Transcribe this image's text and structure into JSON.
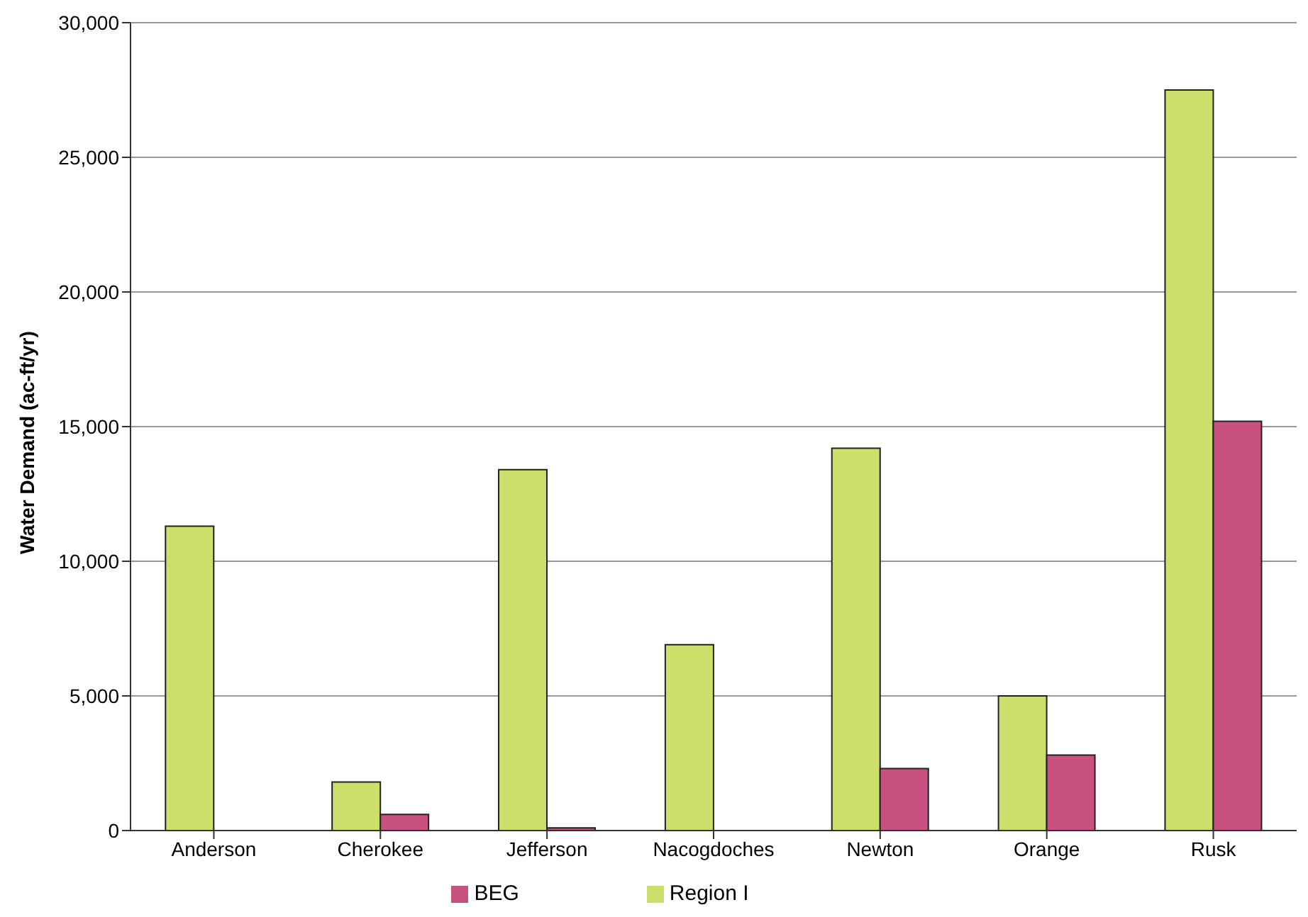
{
  "chart_data": {
    "type": "bar",
    "ylabel": "Water Demand (ac-ft/yr)",
    "categories": [
      "Anderson",
      "Cherokee",
      "Jefferson",
      "Nacogdoches",
      "Newton",
      "Orange",
      "Rusk"
    ],
    "series": [
      {
        "name": "Region I",
        "color": "#cddf6a",
        "values": [
          11300,
          1800,
          13400,
          6900,
          14200,
          5000,
          27500
        ]
      },
      {
        "name": "BEG",
        "color": "#c8517f",
        "values": [
          0,
          600,
          100,
          0,
          2300,
          2800,
          15200
        ]
      }
    ],
    "ylim": [
      0,
      30000
    ],
    "yticks": [
      {
        "value": 0,
        "label": "0"
      },
      {
        "value": 5000,
        "label": "5,000"
      },
      {
        "value": 10000,
        "label": "10,000"
      },
      {
        "value": 15000,
        "label": "15,000"
      },
      {
        "value": 20000,
        "label": "20,000"
      },
      {
        "value": 25000,
        "label": "25,000"
      },
      {
        "value": 30000,
        "label": "30,000"
      }
    ],
    "grid": "y",
    "legend": "bottom"
  }
}
